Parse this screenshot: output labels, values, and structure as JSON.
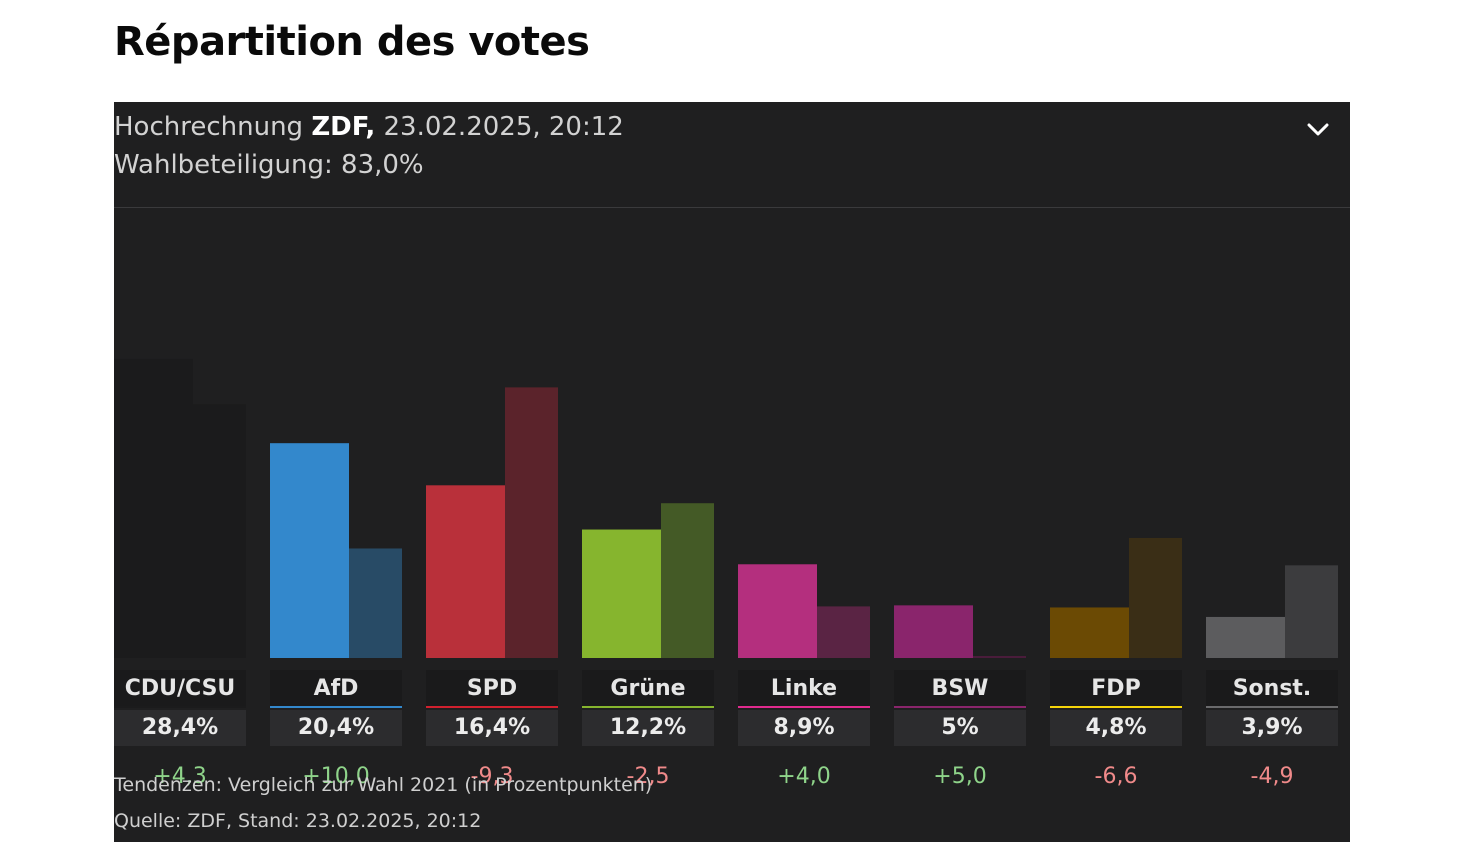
{
  "page": {
    "title": "Répartition des votes"
  },
  "header": {
    "label": "Hochrechnung",
    "source": "ZDF,",
    "datetime": "23.02.2025, 20:12",
    "turnout": "Wahlbeteiligung: 83,0%",
    "toggle_icon": "chevron-down-icon"
  },
  "footer": {
    "note": "Tendenzen: Vergleich zur Wahl 2021 (in Prozentpunkten)",
    "source": "Quelle: ZDF, Stand: 23.02.2025, 20:12"
  },
  "colors": {
    "positive": "#8fd48a",
    "negative": "#f08a8a"
  },
  "chart_data": {
    "type": "bar",
    "title": "Répartition des votes",
    "series": [
      {
        "name": "",
        "values": [
          28.4,
          20.4,
          16.4,
          12.2,
          8.9,
          5.0,
          4.8,
          3.9
        ]
      },
      {
        "name": "",
        "values": [
          24.1,
          10.4,
          25.7,
          14.7,
          4.9,
          0,
          11.4,
          8.8
        ]
      }
    ],
    "categories": [
      "CDU/CSU",
      "AfD",
      "SPD",
      "Grüne",
      "Linke",
      "BSW",
      "FDP",
      "Sonst."
    ],
    "value_labels": [
      "28,4%",
      "20,4%",
      "16,4%",
      "12,2%",
      "8,9%",
      "5%",
      "4,8%",
      "3,9%"
    ],
    "change_labels": [
      "+4,3",
      "+10,0",
      "-9,3",
      "-2,5",
      "+4,0",
      "+5,0",
      "-6,6",
      "-4,9"
    ],
    "change_values": [
      4.3,
      10.0,
      -9.3,
      -2.5,
      4.0,
      5.0,
      -6.6,
      -4.9
    ],
    "colors": [
      "#1b1b1c",
      "#3388cc",
      "#b9303a",
      "#86b52e",
      "#b42f7e",
      "#8a256c",
      "#6b4a04",
      "#5c5c5e"
    ],
    "previous_colors": [
      "#1b1b1c",
      "#284b66",
      "#5b232b",
      "#445a26",
      "#5a2444",
      "#4a1c3b",
      "#3a2e16",
      "#3c3c3e"
    ],
    "accent_colors": [
      "#1b1b1c",
      "#3388cc",
      "#d0202e",
      "#86b52e",
      "#e02a8e",
      "#8a256c",
      "#f5d40a",
      "#6a6a6c"
    ],
    "ylim": [
      0,
      30
    ],
    "grid": false,
    "legend": "none"
  }
}
